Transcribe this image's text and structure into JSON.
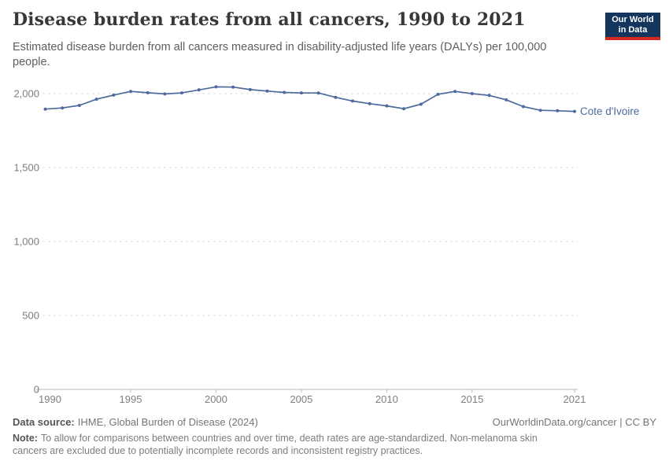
{
  "header": {
    "title": "Disease burden rates from all cancers, 1990 to 2021",
    "subtitle": "Estimated disease burden from all cancers measured in disability-adjusted life years (DALYs) per 100,000 people.",
    "logo": {
      "line1": "Our World",
      "line2": "in Data",
      "bg_color": "#14355c",
      "bar_color": "#d2281e"
    }
  },
  "chart_data": {
    "type": "line",
    "title": "Disease burden rates from all cancers, 1990 to 2021",
    "xlabel": "",
    "ylabel": "",
    "xlim": [
      1990,
      2021
    ],
    "ylim": [
      0,
      2000
    ],
    "grid": "horizontal-dashed",
    "grid_color": "#dcdcdc",
    "axis_color": "#b8b8b8",
    "tick_label_color": "#7e7e7e",
    "legend": "inline-end-label",
    "x_ticks": [
      1990,
      1995,
      2000,
      2005,
      2010,
      2015,
      2021
    ],
    "x_tick_labels": [
      "1990",
      "1995",
      "2000",
      "2005",
      "2010",
      "2015",
      "2021"
    ],
    "y_ticks": [
      0,
      500,
      1000,
      1500,
      2000
    ],
    "y_tick_labels": [
      "0",
      "500",
      "1,000",
      "1,500",
      "2,000"
    ],
    "series": [
      {
        "name": "Cote d'Ivoire",
        "color": "#4C6A9C",
        "x": [
          1990,
          1991,
          1992,
          1993,
          1994,
          1995,
          1996,
          1997,
          1998,
          1999,
          2000,
          2001,
          2002,
          2003,
          2004,
          2005,
          2006,
          2007,
          2008,
          2009,
          2010,
          2011,
          2012,
          2013,
          2014,
          2015,
          2016,
          2017,
          2018,
          2019,
          2020,
          2021
        ],
        "values": [
          1895,
          1903,
          1920,
          1962,
          1990,
          2015,
          2006,
          1998,
          2005,
          2025,
          2046,
          2044,
          2027,
          2017,
          2008,
          2005,
          2004,
          1975,
          1950,
          1932,
          1917,
          1898,
          1928,
          1995,
          2015,
          2000,
          1988,
          1958,
          1912,
          1887,
          1884,
          1880
        ]
      }
    ]
  },
  "footer": {
    "source_label": "Data source:",
    "source_text": "IHME, Global Burden of Disease (2024)",
    "rights": "OurWorldinData.org/cancer | CC BY",
    "note_label": "Note:",
    "note_text": "To allow for comparisons between countries and over time, death rates are age-standardized. Non-melanoma skin cancers are excluded due to potentially incomplete records and inconsistent registry practices."
  }
}
